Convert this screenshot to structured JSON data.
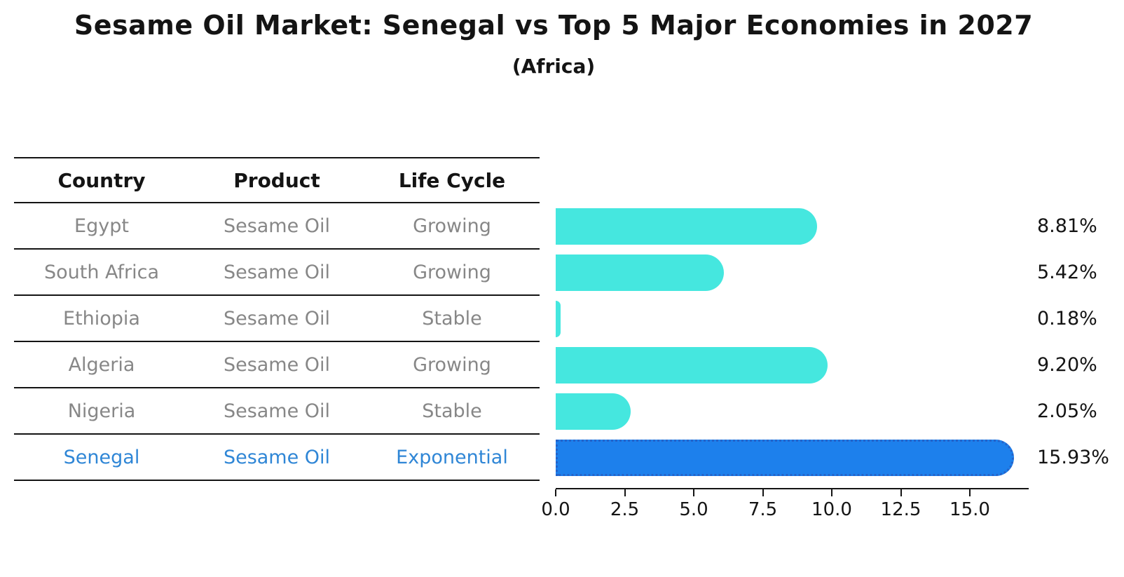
{
  "title": "Sesame Oil Market: Senegal vs Top 5 Major Economies in 2027",
  "subtitle": "(Africa)",
  "table": {
    "headers": [
      "Country",
      "Product",
      "Life Cycle"
    ],
    "rows": [
      {
        "country": "Egypt",
        "product": "Sesame Oil",
        "life_cycle": "Growing",
        "highlighted": false
      },
      {
        "country": "South Africa",
        "product": "Sesame Oil",
        "life_cycle": "Growing",
        "highlighted": false
      },
      {
        "country": "Ethiopia",
        "product": "Sesame Oil",
        "life_cycle": "Stable",
        "highlighted": false
      },
      {
        "country": "Algeria",
        "product": "Sesame Oil",
        "life_cycle": "Growing",
        "highlighted": false
      },
      {
        "country": "Nigeria",
        "product": "Sesame Oil",
        "life_cycle": "Stable",
        "highlighted": false
      },
      {
        "country": "Senegal",
        "product": "Sesame Oil",
        "life_cycle": "Exponential",
        "highlighted": true
      }
    ]
  },
  "chart_data": {
    "type": "bar",
    "orientation": "horizontal",
    "title": "Sesame Oil Market: Senegal vs Top 5 Major Economies in 2027",
    "subtitle": "(Africa)",
    "categories": [
      "Egypt",
      "South Africa",
      "Ethiopia",
      "Algeria",
      "Nigeria",
      "Senegal"
    ],
    "values": [
      8.81,
      5.42,
      0.18,
      9.2,
      2.05,
      15.93
    ],
    "value_labels": [
      "8.81%",
      "5.42%",
      "0.18%",
      "9.20%",
      "2.05%",
      "15.93%"
    ],
    "highlight_index": 5,
    "x_ticks": [
      0.0,
      2.5,
      5.0,
      7.5,
      10.0,
      12.5,
      15.0
    ],
    "x_tick_labels": [
      "0.0",
      "2.5",
      "5.0",
      "7.5",
      "10.0",
      "12.5",
      "15.0"
    ],
    "xlim": [
      0,
      17.1
    ],
    "xlabel": "",
    "ylabel": "",
    "grid": false,
    "legend": false
  },
  "colors": {
    "bar": "#45e7df",
    "highlight_bar": "#1d80ec",
    "highlight_border": "#2563c9",
    "highlight_text": "#2f86d6",
    "table_text": "#878787",
    "header_text": "#141414",
    "line": "#141414"
  }
}
